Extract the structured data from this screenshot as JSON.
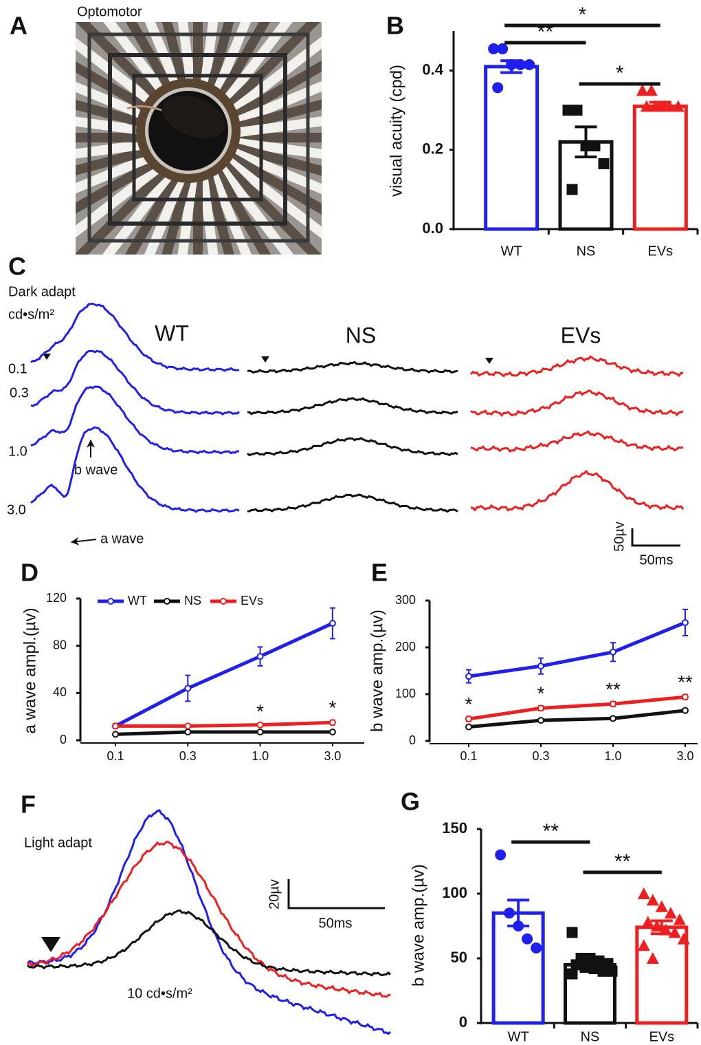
{
  "panel_labels": [
    "A",
    "B",
    "C",
    "D",
    "E",
    "F",
    "G"
  ],
  "panel_a": {
    "caption": "Optomotor"
  },
  "panel_c": {
    "condition": "Dark adapt",
    "unit": "cd•s/m²",
    "groups": [
      "WT",
      "NS",
      "EVs"
    ],
    "intensities": [
      "0.1",
      "0.3",
      "1.0",
      "3.0"
    ],
    "b_wave_label": "b wave",
    "a_wave_label": "a wave",
    "scale_y": "50µv",
    "scale_x": "50ms"
  },
  "panel_f": {
    "condition": "Light adapt",
    "intensity": "10 cd•s/m²",
    "scale_y": "20µv",
    "scale_x": "50ms"
  },
  "chart_data": [
    {
      "type": "bar",
      "y_label": "visual acuity (cpd)",
      "categories": [
        "WT",
        "NS",
        "EVs"
      ],
      "values": [
        0.41,
        0.22,
        0.31
      ],
      "errors": [
        0.015,
        0.038,
        0.01
      ],
      "colors": [
        "#1f1fef",
        "#111111",
        "#ef1f1f"
      ],
      "markers": [
        "circle",
        "square",
        "triangle"
      ],
      "points": [
        [
          0.455,
          0.455,
          0.415,
          0.415,
          0.415,
          0.357
        ],
        [
          0.3,
          0.3,
          0.21,
          0.21,
          0.165,
          0.1
        ],
        [
          0.35,
          0.35,
          0.31,
          0.31,
          0.31,
          0.31,
          0.31,
          0.31
        ]
      ],
      "ylim": [
        0,
        0.5
      ],
      "yticks": [
        {
          "value": 0,
          "label": "0.0"
        },
        0.2,
        0.4
      ],
      "annotations": [
        {
          "from": "WT",
          "to": "EVs",
          "label": "*"
        },
        {
          "from": "WT",
          "to": "NS",
          "label": "**"
        },
        {
          "from": "NS",
          "to": "EVs",
          "label": "*"
        }
      ]
    },
    {
      "type": "line",
      "y_label": "a wave ampl.(µv)",
      "categories": [
        "0.1",
        "0.3",
        "1.0",
        "3.0"
      ],
      "series": [
        {
          "name": "WT",
          "color": "#1f1fef",
          "values": [
            12,
            44,
            71,
            99
          ],
          "errors": [
            2,
            11,
            8,
            13
          ]
        },
        {
          "name": "NS",
          "color": "#111111",
          "values": [
            5,
            7,
            7,
            7
          ],
          "errors": [
            1,
            1,
            1,
            1
          ]
        },
        {
          "name": "EVs",
          "color": "#ef1f1f",
          "values": [
            12,
            12,
            13,
            15
          ],
          "errors": [
            1,
            1,
            1,
            2
          ]
        }
      ],
      "ylim": [
        0,
        120
      ],
      "yticks": [
        0,
        40,
        80,
        120
      ],
      "legend": "top",
      "annotations": [
        {
          "category": "1.0",
          "series": "EVs",
          "label": "*"
        },
        {
          "category": "3.0",
          "series": "EVs",
          "label": "*"
        }
      ]
    },
    {
      "type": "line",
      "y_label": "b wave amp.(µv)",
      "categories": [
        "0.1",
        "0.3",
        "1.0",
        "3.0"
      ],
      "series": [
        {
          "name": "WT",
          "color": "#1f1fef",
          "values": [
            138,
            160,
            190,
            253
          ],
          "errors": [
            14,
            17,
            20,
            28
          ]
        },
        {
          "name": "NS",
          "color": "#111111",
          "values": [
            30,
            44,
            48,
            65
          ],
          "errors": [
            3,
            3,
            3,
            4
          ]
        },
        {
          "name": "EVs",
          "color": "#ef1f1f",
          "values": [
            47,
            70,
            79,
            94
          ],
          "errors": [
            5,
            5,
            5,
            5
          ]
        }
      ],
      "ylim": [
        0,
        300
      ],
      "yticks": [
        0,
        100,
        200,
        300
      ],
      "annotations": [
        {
          "category": "0.1",
          "series": "EVs",
          "label": "*"
        },
        {
          "category": "0.3",
          "series": "EVs",
          "label": "*"
        },
        {
          "category": "1.0",
          "series": "EVs",
          "label": "**"
        },
        {
          "category": "3.0",
          "series": "EVs",
          "label": "**"
        }
      ]
    },
    {
      "type": "bar",
      "y_label": "b wave amp.(µv)",
      "categories": [
        "WT",
        "NS",
        "EVs"
      ],
      "values": [
        85,
        45,
        74
      ],
      "errors": [
        10,
        3,
        5
      ],
      "colors": [
        "#1f1fef",
        "#111111",
        "#ef1f1f"
      ],
      "markers": [
        "circle",
        "square",
        "triangle"
      ],
      "points": [
        [
          130,
          85,
          75,
          65,
          58
        ],
        [
          70,
          50,
          50,
          48,
          46,
          45,
          43,
          42,
          40,
          40,
          38
        ],
        [
          100,
          95,
          90,
          85,
          80,
          78,
          75,
          72,
          70,
          65,
          60,
          50
        ]
      ],
      "ylim": [
        0,
        150
      ],
      "yticks": [
        0,
        50,
        100,
        150
      ],
      "annotations": [
        {
          "from": "WT",
          "to": "NS",
          "label": "**"
        },
        {
          "from": "NS",
          "to": "EVs",
          "label": "**"
        }
      ]
    }
  ]
}
